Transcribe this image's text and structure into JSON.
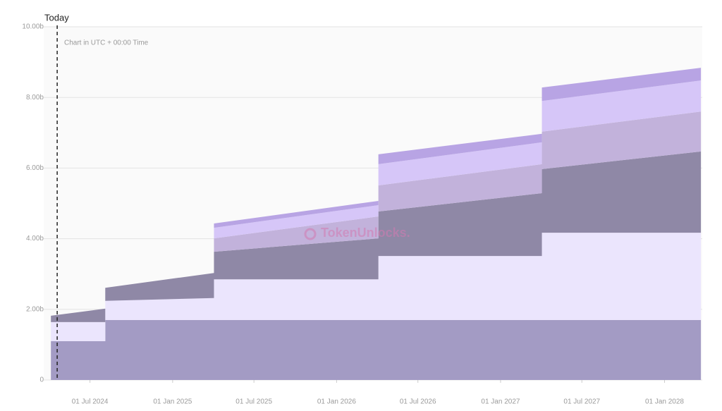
{
  "chart_data": {
    "type": "stacked-area",
    "subtitle": "Chart in UTC + 00:00 Time",
    "watermark": "TokenUnlocks.",
    "annotation": {
      "text": "Today",
      "x": "2024-04-19"
    },
    "x": [
      "2024-04-05",
      "2024-08-04",
      "2024-08-04",
      "2025-04-03",
      "2025-04-03",
      "2026-04-04",
      "2026-04-04",
      "2027-04-03",
      "2027-04-03",
      "2028-03-22"
    ],
    "series": [
      {
        "color": "#a39bc4",
        "values": [
          1.1,
          1.1,
          1.7,
          1.7,
          1.7,
          1.7,
          1.7,
          1.7,
          1.7,
          1.7
        ]
      },
      {
        "color": "#ebe5fd",
        "values": [
          0.54,
          0.54,
          0.54,
          0.62,
          1.15,
          1.15,
          1.81,
          1.81,
          2.47,
          2.47
        ]
      },
      {
        "color": "#8f88a6",
        "values": [
          0.18,
          0.38,
          0.37,
          0.71,
          0.78,
          1.16,
          1.26,
          1.78,
          1.8,
          2.3
        ]
      },
      {
        "color": "#c2b2db",
        "values": [
          0,
          0,
          0,
          0,
          0.38,
          0.62,
          0.74,
          0.82,
          1.06,
          1.13
        ]
      },
      {
        "color": "#d6c6f8",
        "values": [
          0,
          0,
          0,
          0,
          0.3,
          0.32,
          0.6,
          0.62,
          0.87,
          0.88
        ]
      },
      {
        "color": "#b8a4e4",
        "values": [
          0,
          0,
          0,
          0,
          0.12,
          0.12,
          0.28,
          0.24,
          0.38,
          0.36
        ]
      }
    ],
    "xlim": [
      "2024-03-20",
      "2028-03-25"
    ],
    "xticks": [
      {
        "value": "2024-07-01",
        "label": "01 Jul 2024"
      },
      {
        "value": "2025-01-01",
        "label": "01 Jan 2025"
      },
      {
        "value": "2025-07-01",
        "label": "01 Jul 2025"
      },
      {
        "value": "2026-01-01",
        "label": "01 Jan 2026"
      },
      {
        "value": "2026-07-01",
        "label": "01 Jul 2026"
      },
      {
        "value": "2027-01-01",
        "label": "01 Jan 2027"
      },
      {
        "value": "2027-07-01",
        "label": "01 Jul 2027"
      },
      {
        "value": "2028-01-01",
        "label": "01 Jan 2028"
      }
    ],
    "ylim": [
      0,
      10
    ],
    "yticks": [
      0,
      {
        "value": 2,
        "label": "2.00b"
      },
      {
        "value": 4,
        "label": "4.00b"
      },
      {
        "value": 6,
        "label": "6.00b"
      },
      {
        "value": 8,
        "label": "8.00b"
      },
      {
        "value": 10,
        "label": "10.00b"
      }
    ],
    "grid": true
  }
}
